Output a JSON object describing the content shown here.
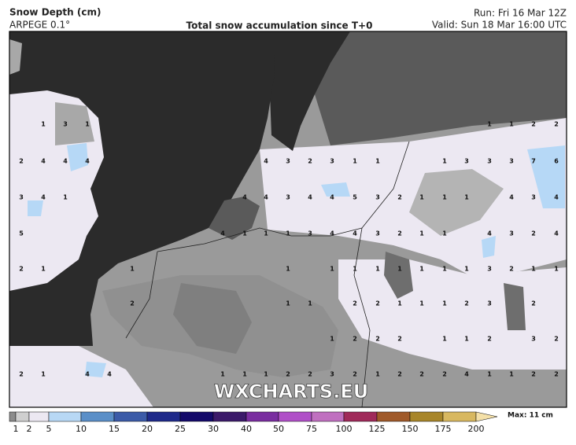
{
  "header": {
    "title": "Snow Depth (cm)",
    "model": "ARPEGE 0.1°",
    "subtitle": "Total snow accumulation since T+0",
    "run": "Run: Fri 16 Mar 12Z",
    "valid": "Valid: Sun 18 Mar 16:00 UTC"
  },
  "map": {
    "watermark": "WXCHARTS.EU",
    "labels": [
      [
        1,
        3,
        1,
        1,
        1,
        2,
        2
      ],
      [
        2,
        4,
        4,
        4,
        4,
        3,
        2,
        3,
        1,
        1,
        1,
        3,
        3,
        3,
        7,
        6
      ],
      [
        3,
        4,
        1,
        4,
        4,
        3,
        4,
        4,
        5,
        3,
        2,
        1,
        1,
        1,
        4,
        3,
        4
      ],
      [
        5,
        4,
        1,
        1,
        1,
        3,
        4,
        4,
        3,
        2,
        1,
        1,
        4,
        3,
        2,
        4
      ],
      [
        2,
        1,
        1,
        1,
        1,
        1,
        1,
        1,
        1,
        1,
        1,
        3,
        2,
        1,
        1
      ],
      [
        2,
        1,
        1,
        2,
        2,
        1,
        1,
        1,
        2,
        3,
        2
      ],
      [
        1,
        2,
        2,
        2,
        1,
        1,
        2,
        3,
        2
      ],
      [
        2,
        1,
        4,
        4,
        1,
        1,
        1,
        2,
        2,
        3,
        2,
        1,
        2,
        2,
        2,
        4,
        1,
        1,
        2,
        2
      ]
    ]
  },
  "legend": {
    "ticks": [
      1,
      2,
      5,
      10,
      15,
      20,
      25,
      30,
      40,
      50,
      75,
      100,
      125,
      150,
      175,
      200
    ],
    "max": "Max: 11 cm"
  }
}
